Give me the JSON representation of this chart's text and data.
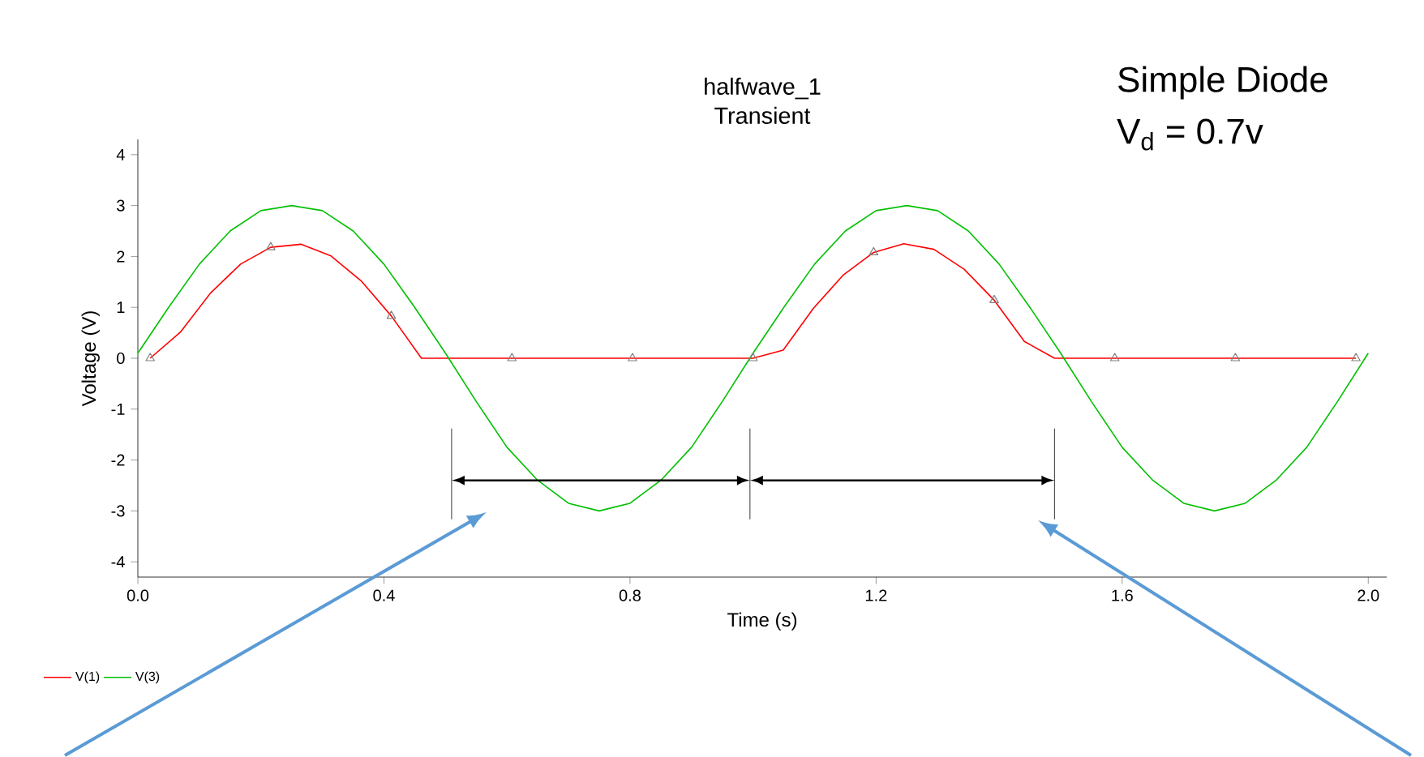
{
  "chart_data": {
    "type": "line",
    "title": "halfwave_1",
    "subtitle": "Transient",
    "xlabel": "Time (s)",
    "ylabel": "Voltage (V)",
    "annotations": [
      "Simple Diode",
      "V$_{d}$ = 0.7v"
    ],
    "xlim": [
      0,
      2.03
    ],
    "ylim": [
      -4.3,
      4.3
    ],
    "xticks": [
      {
        "value": 0,
        "label": "0.0"
      },
      0.4,
      0.8,
      1.2,
      1.6,
      {
        "value": 2.0,
        "label": "2.0"
      }
    ],
    "yticks": [
      -4,
      -3,
      -2,
      -1,
      0,
      1,
      2,
      3,
      4
    ],
    "grid": false,
    "legend": "bottom left",
    "series": [
      {
        "type": "scatter",
        "color": "#808080",
        "marker": "triangle",
        "x": [
          0.02,
          0.216,
          0.412,
          0.608,
          0.804,
          1.0,
          1.196,
          1.392,
          1.588,
          1.784,
          1.98
        ],
        "values": [
          0,
          2.18,
          0.83,
          0,
          0,
          0,
          2.08,
          1.14,
          0,
          0,
          0
        ]
      },
      {
        "name": "V(1)",
        "color": "#ff0000",
        "x": [
          0.02,
          0.069,
          0.118,
          0.167,
          0.216,
          0.265,
          0.314,
          0.363,
          0.412,
          0.461,
          0.51,
          0.559,
          0.608,
          0.657,
          0.706,
          0.755,
          0.804,
          0.853,
          0.902,
          0.951,
          1.0,
          1.049,
          1.098,
          1.147,
          1.196,
          1.245,
          1.294,
          1.343,
          1.392,
          1.441,
          1.49,
          1.539,
          1.588,
          1.637,
          1.686,
          1.735,
          1.784,
          1.833,
          1.882,
          1.931,
          1.98
        ],
        "values": [
          0,
          0.51,
          1.28,
          1.85,
          2.18,
          2.24,
          2.01,
          1.52,
          0.83,
          0,
          0,
          0,
          0,
          0,
          0,
          0,
          0,
          0,
          0,
          0,
          0,
          0.16,
          0.98,
          1.64,
          2.08,
          2.25,
          2.14,
          1.75,
          1.14,
          0.33,
          0,
          0,
          0,
          0,
          0,
          0,
          0,
          0,
          0,
          0,
          0
        ]
      },
      {
        "name": "V(3)",
        "color": "#00c000",
        "x": [
          0,
          0.05,
          0.1,
          0.15,
          0.2,
          0.25,
          0.3,
          0.35,
          0.4,
          0.45,
          0.5,
          0.55,
          0.6,
          0.65,
          0.7,
          0.75,
          0.8,
          0.85,
          0.9,
          0.95,
          1.0,
          1.05,
          1.1,
          1.15,
          1.2,
          1.25,
          1.3,
          1.35,
          1.4,
          1.45,
          1.5,
          1.55,
          1.6,
          1.65,
          1.7,
          1.75,
          1.8,
          1.85,
          1.9,
          1.95,
          2.0
        ],
        "values": [
          0.1,
          1.0,
          1.85,
          2.5,
          2.9,
          3.0,
          2.9,
          2.5,
          1.85,
          1.0,
          0.1,
          -0.85,
          -1.75,
          -2.4,
          -2.85,
          -3.0,
          -2.85,
          -2.4,
          -1.75,
          -0.85,
          0.1,
          1.0,
          1.85,
          2.5,
          2.9,
          3.0,
          2.9,
          2.5,
          1.85,
          1.0,
          0.1,
          -0.85,
          -1.75,
          -2.4,
          -2.85,
          -3.0,
          -2.85,
          -2.4,
          -1.75,
          -0.85,
          0.1
        ]
      }
    ]
  }
}
